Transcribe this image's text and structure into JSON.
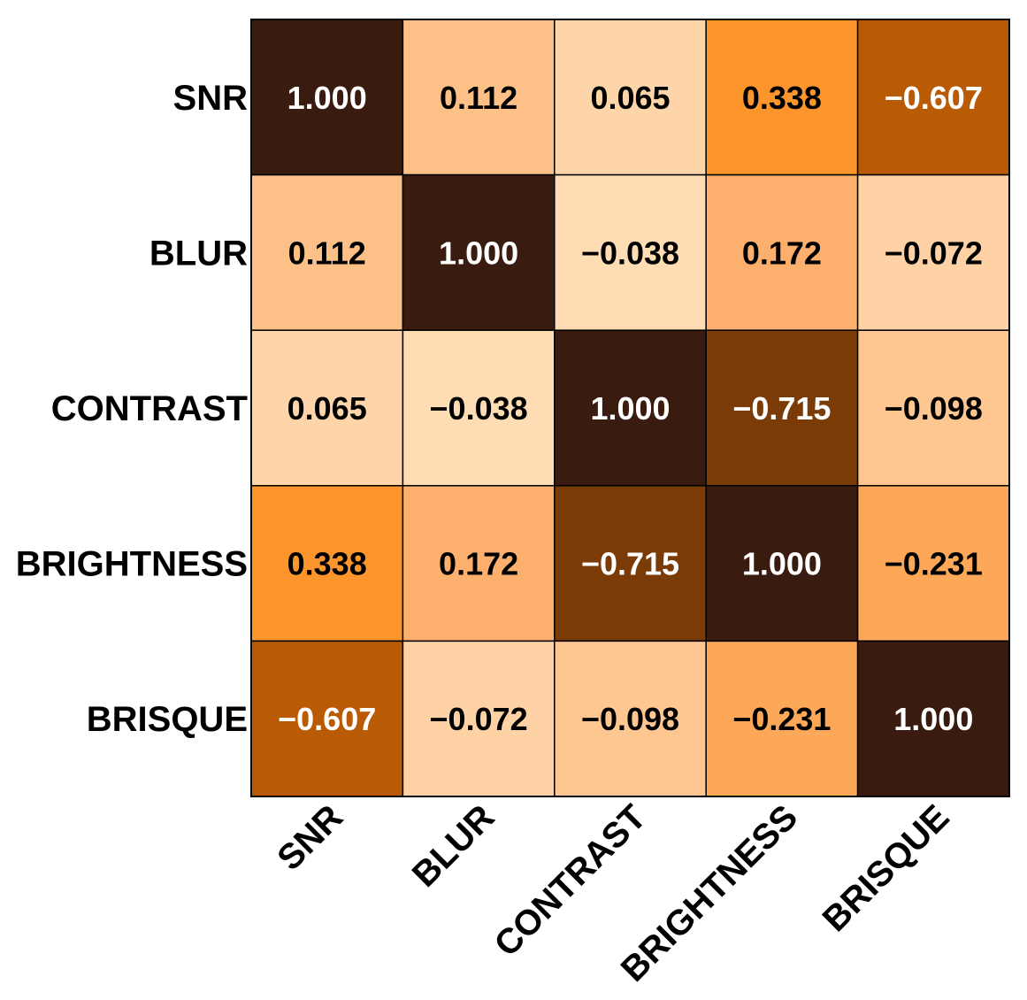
{
  "chart_data": {
    "type": "heatmap",
    "title": "",
    "row_labels": [
      "SNR",
      "BLUR",
      "CONTRAST",
      "BRIGHTNESS",
      "BRISQUE"
    ],
    "col_labels": [
      "SNR",
      "BLUR",
      "CONTRAST",
      "BRIGHTNESS",
      "BRISQUE"
    ],
    "values": [
      [
        1.0,
        0.112,
        0.065,
        0.338,
        -0.607
      ],
      [
        0.112,
        1.0,
        -0.038,
        0.172,
        -0.072
      ],
      [
        0.065,
        -0.038,
        1.0,
        -0.715,
        -0.098
      ],
      [
        0.338,
        0.172,
        -0.715,
        1.0,
        -0.231
      ],
      [
        -0.607,
        -0.072,
        -0.098,
        -0.231,
        1.0
      ]
    ],
    "value_labels": [
      [
        "1.000",
        "0.112",
        "0.065",
        "0.338",
        "−0.607"
      ],
      [
        "0.112",
        "1.000",
        "−0.038",
        "0.172",
        "−0.072"
      ],
      [
        "0.065",
        "−0.038",
        "1.000",
        "−0.715",
        "−0.098"
      ],
      [
        "0.338",
        "0.172",
        "−0.715",
        "1.000",
        "−0.231"
      ],
      [
        "−0.607",
        "−0.072",
        "−0.098",
        "−0.231",
        "1.000"
      ]
    ],
    "color_scale": {
      "stops": [
        {
          "abs_value": 0.0,
          "color": "#fedcb4"
        },
        {
          "abs_value": 0.05,
          "color": "#fedcb4"
        },
        {
          "abs_value": 0.15,
          "color": "#fdb06d"
        },
        {
          "abs_value": 0.2,
          "color": "#fdb06d"
        },
        {
          "abs_value": 0.3,
          "color": "#fd952d"
        },
        {
          "abs_value": 0.45,
          "color": "#fd952d"
        },
        {
          "abs_value": 0.55,
          "color": "#b95a04"
        },
        {
          "abs_value": 0.65,
          "color": "#b95a04"
        },
        {
          "abs_value": 0.7,
          "color": "#7a3b06"
        },
        {
          "abs_value": 0.8,
          "color": "#7a3b06"
        },
        {
          "abs_value": 0.95,
          "color": "#3a1b10"
        },
        {
          "abs_value": 1.0,
          "color": "#3a1b10"
        }
      ],
      "grid_color": "#000000",
      "light_text_color": "#ffffff",
      "dark_text_color": "#000000"
    },
    "colorbar": false,
    "legend": "none"
  }
}
